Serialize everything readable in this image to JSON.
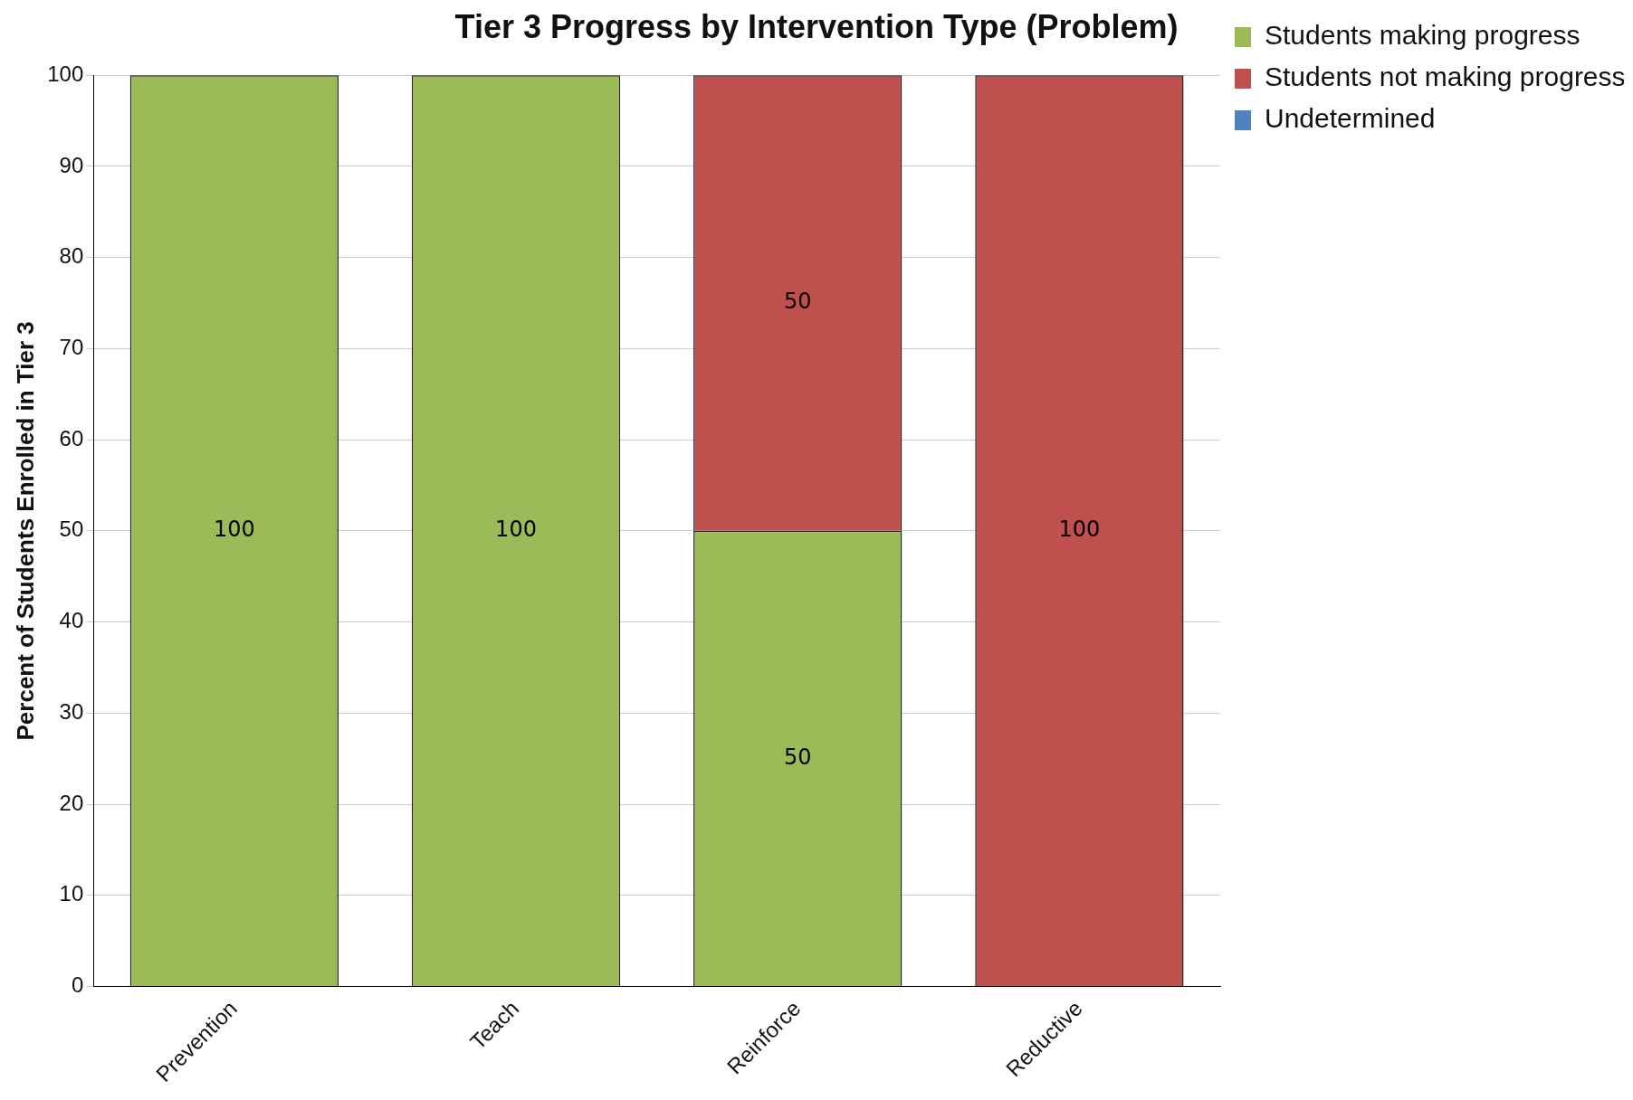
{
  "chart_data": {
    "type": "bar",
    "title": "Tier 3 Progress by Intervention Type (Problem)",
    "ylabel": "Percent of Students Enrolled in Tier 3",
    "categories": [
      "Prevention",
      "Teach",
      "Reinforce",
      "Reductive"
    ],
    "stacked": true,
    "series": [
      {
        "name": "Students making progress",
        "color": "#9bbb59",
        "values": [
          100,
          100,
          50,
          0
        ],
        "value_labels": [
          "100",
          "100",
          "50",
          null
        ]
      },
      {
        "name": "Students not making progress",
        "color": "#c0504d",
        "values": [
          0,
          0,
          50,
          100
        ],
        "value_labels": [
          null,
          null,
          "50",
          "100"
        ]
      },
      {
        "name": "Undetermined",
        "color": "#4f81bd",
        "values": [
          0,
          0,
          0,
          0
        ]
      }
    ],
    "ylim": [
      0,
      100
    ],
    "yticks": [
      0,
      10,
      20,
      30,
      40,
      50,
      60,
      70,
      80,
      90,
      100
    ],
    "grid": "y",
    "legend": "top right"
  }
}
